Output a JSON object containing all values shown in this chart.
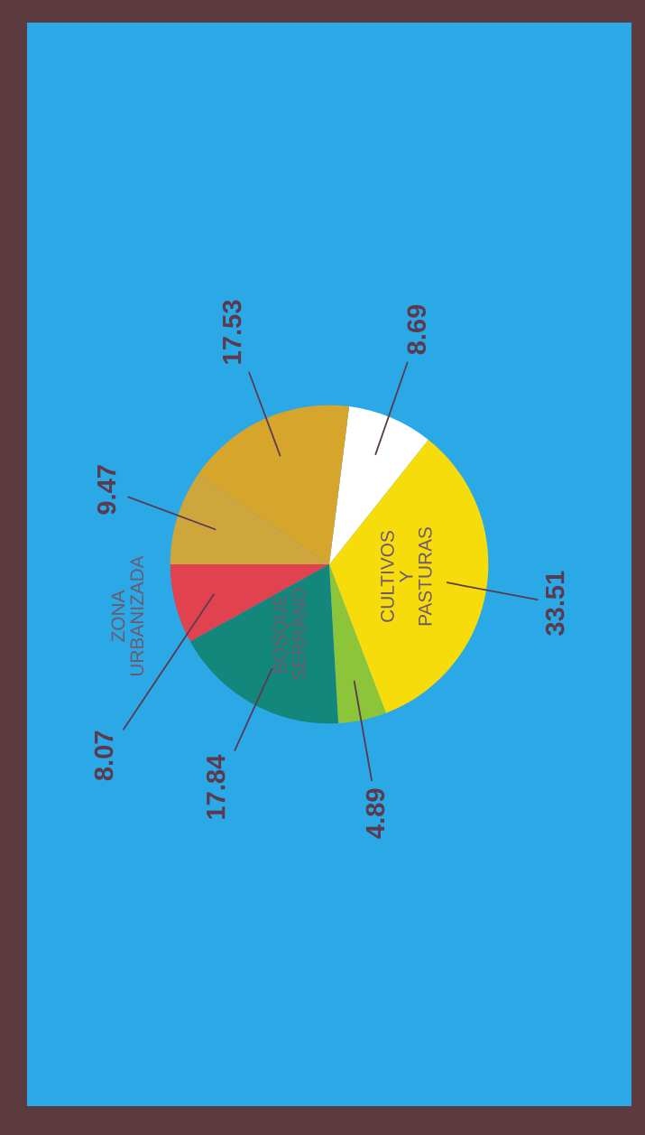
{
  "chart_data": {
    "type": "pie",
    "categories": [
      "ZONA URBANIZADA",
      "BOSQUE SERRANO",
      null,
      "CULTIVOS Y PASTURAS",
      null,
      null,
      null
    ],
    "values": [
      8.07,
      17.84,
      4.89,
      33.51,
      8.69,
      17.53,
      9.47
    ],
    "colors": [
      "#e0434f",
      "#13877c",
      "#8cc43a",
      "#f7dc0c",
      "#ffffff",
      "#d6a52c",
      "#cfa63c"
    ],
    "data_labels": true
  }
}
